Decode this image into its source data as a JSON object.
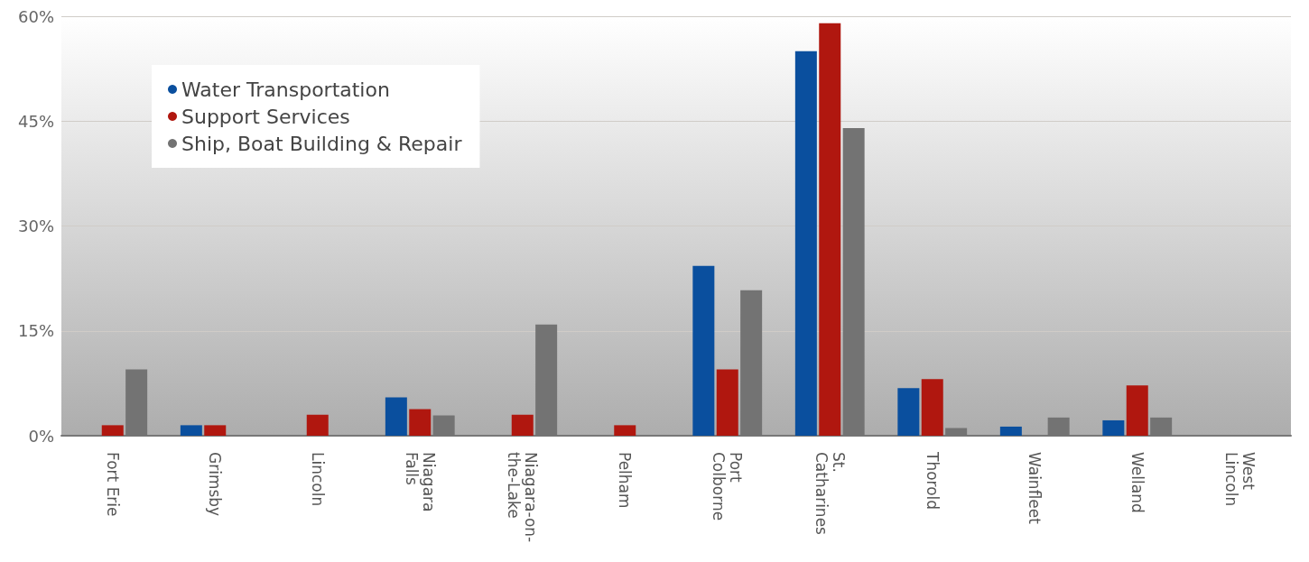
{
  "chart_data": {
    "type": "bar",
    "categories": [
      "Fort Erie",
      "Grimsby",
      "Lincoln",
      "Niagara\nFalls",
      "Niagara-on-\nthe-Lake",
      "Pelham",
      "Port\nColborne",
      "St.\nCatharines",
      "Thorold",
      "Wainfleet",
      "Welland",
      "West\nLincoln"
    ],
    "series": [
      {
        "name": "Water Transportation",
        "color": "#0a4f9e",
        "values": [
          null,
          1.5,
          null,
          5.5,
          null,
          null,
          24.3,
          55.0,
          6.8,
          1.3,
          2.2,
          null
        ]
      },
      {
        "name": "Support Services",
        "color": "#b0170f",
        "values": [
          1.5,
          1.5,
          3.0,
          3.8,
          3.0,
          1.5,
          9.5,
          59.0,
          8.1,
          null,
          7.2,
          null
        ]
      },
      {
        "name": "Ship, Boat Building & Repair",
        "color": "#737373",
        "values": [
          9.5,
          null,
          null,
          2.9,
          15.9,
          null,
          20.8,
          44.0,
          1.1,
          2.6,
          2.6,
          null
        ]
      }
    ],
    "ylim": [
      0,
      60
    ],
    "yticks": [
      {
        "value": 0,
        "label": "0%"
      },
      {
        "value": 15,
        "label": "15%"
      },
      {
        "value": 30,
        "label": "30%"
      },
      {
        "value": 45,
        "label": "45%"
      },
      {
        "value": 60,
        "label": "60%"
      }
    ],
    "grid": "y",
    "legend": "top left",
    "marker": "circle"
  }
}
